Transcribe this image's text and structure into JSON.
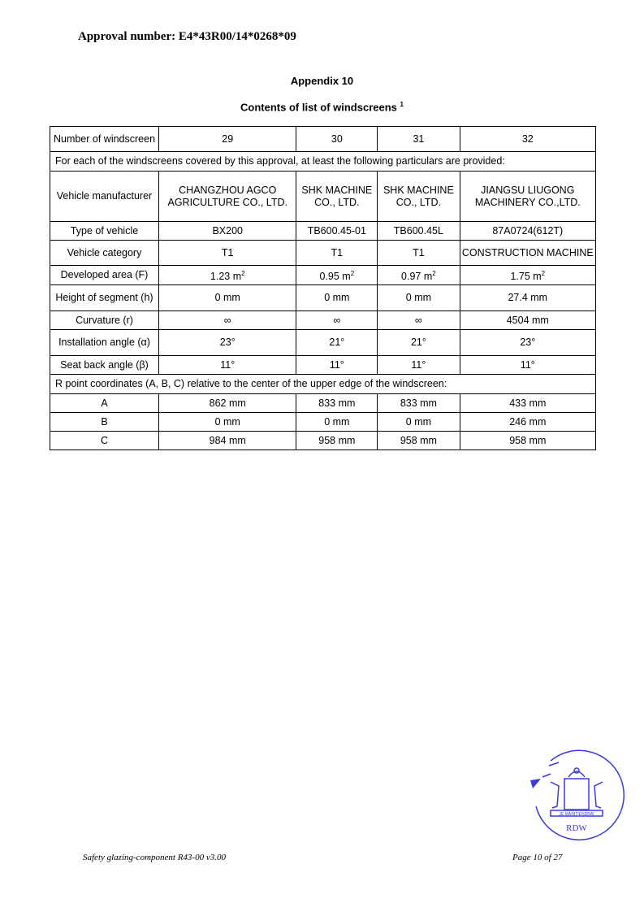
{
  "approval_number": "Approval number: E4*43R00/14*0268*09",
  "appendix_title": "Appendix 10",
  "list_title": "Contents of list of windscreens",
  "list_title_footnote": "1",
  "table": {
    "header": {
      "label": "Number of windscreen",
      "values": [
        "29",
        "30",
        "31",
        "32"
      ]
    },
    "intro": "For each of the windscreens covered by this approval, at least the following particulars are provided:",
    "rows": [
      {
        "label": "Vehicle manufacturer",
        "values": [
          "CHANGZHOU AGCO AGRICULTURE CO., LTD.",
          "SHK MACHINE CO., LTD.",
          "SHK MACHINE CO., LTD.",
          "JIANGSU LIUGONG MACHINERY CO.,LTD."
        ]
      },
      {
        "label": "Type of vehicle",
        "values": [
          "BX200",
          "TB600.45-01",
          "TB600.45L",
          "87A0724(612T)"
        ]
      },
      {
        "label": "Vehicle category",
        "values": [
          "T1",
          "T1",
          "T1",
          "CONSTRUCTION MACHINE"
        ]
      },
      {
        "label": "Developed area (F)",
        "values": [
          "1.23 m",
          "0.95 m",
          "0.97 m",
          "1.75 m"
        ],
        "unit_sup": "2"
      },
      {
        "label": "Height of segment (h)",
        "values": [
          "0 mm",
          "0 mm",
          "0 mm",
          "27.4 mm"
        ]
      },
      {
        "label": "Curvature (r)",
        "values": [
          "∞",
          "∞",
          "∞",
          "4504 mm"
        ]
      },
      {
        "label": "Installation angle (α)",
        "values": [
          "23°",
          "21°",
          "21°",
          "23°"
        ]
      },
      {
        "label": "Seat back angle (β)",
        "values": [
          "11°",
          "11°",
          "11°",
          "11°"
        ]
      }
    ],
    "r_point_intro": "R point coordinates (A, B, C) relative to the center of the upper edge of the windscreen:",
    "r_rows": [
      {
        "label": "A",
        "values": [
          "862 mm",
          "833 mm",
          "833 mm",
          "433 mm"
        ]
      },
      {
        "label": "B",
        "values": [
          "0 mm",
          "0 mm",
          "0 mm",
          "246 mm"
        ]
      },
      {
        "label": "C",
        "values": [
          "984 mm",
          "958 mm",
          "958 mm",
          "958 mm"
        ]
      }
    ]
  },
  "stamp": {
    "motto": "JE MAINTIENDRAI",
    "text": "RDW",
    "color": "#3a3adf"
  },
  "footer": {
    "left": "Safety glazing-component R43-00 v3.00",
    "right": "Page 10 of 27"
  }
}
